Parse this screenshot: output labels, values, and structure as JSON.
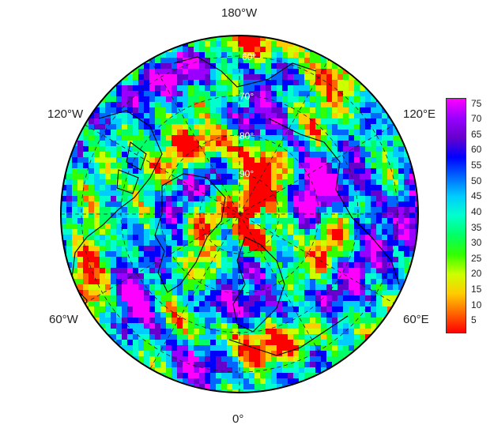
{
  "longitude_labels": {
    "top": "180°W",
    "upper_left": "120°W",
    "upper_right": "120°E",
    "lower_left": "60°W",
    "lower_right": "60°E",
    "bottom": "0°"
  },
  "latitude_labels": [
    "60°",
    "70°",
    "80°",
    "90°"
  ],
  "colorbar": {
    "ticks": [
      "75",
      "70",
      "65",
      "60",
      "55",
      "50",
      "45",
      "40",
      "35",
      "30",
      "25",
      "20",
      "15",
      "10",
      "5"
    ],
    "colors": [
      "#ff0000",
      "#ff6600",
      "#ffcc00",
      "#ccff00",
      "#33ff00",
      "#00ff66",
      "#00ffcc",
      "#00ccff",
      "#0066ff",
      "#0000ff",
      "#6600cc",
      "#9900ff",
      "#ff00ff"
    ]
  }
}
